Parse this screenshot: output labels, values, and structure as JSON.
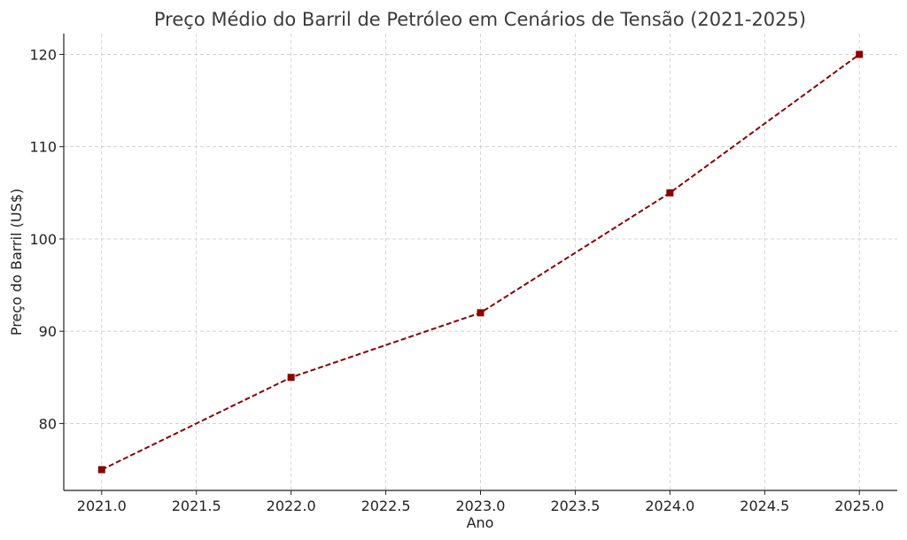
{
  "chart_data": {
    "type": "line",
    "title": "Preço Médio do Barril de Petróleo em Cenários de Tensão (2021-2025)",
    "xlabel": "Ano",
    "ylabel": "Preço do Barril (US$)",
    "x": [
      2021,
      2022,
      2023,
      2024,
      2025
    ],
    "series": [
      {
        "values": [
          75,
          85,
          92,
          105,
          120
        ],
        "color": "#8b0000",
        "line_style": "dashed",
        "marker": "square"
      }
    ],
    "xlim": [
      2020.8,
      2025.2
    ],
    "ylim": [
      72.75,
      122.25
    ],
    "x_ticks": [
      2021.0,
      2021.5,
      2022.0,
      2022.5,
      2023.0,
      2023.5,
      2024.0,
      2024.5,
      2025.0
    ],
    "x_tick_labels": [
      "2021.0",
      "2021.5",
      "2022.0",
      "2022.5",
      "2023.0",
      "2023.5",
      "2024.0",
      "2024.5",
      "2025.0"
    ],
    "y_ticks": [
      80,
      90,
      100,
      110,
      120
    ],
    "y_tick_labels": [
      "80",
      "90",
      "100",
      "110",
      "120"
    ],
    "grid": true
  }
}
